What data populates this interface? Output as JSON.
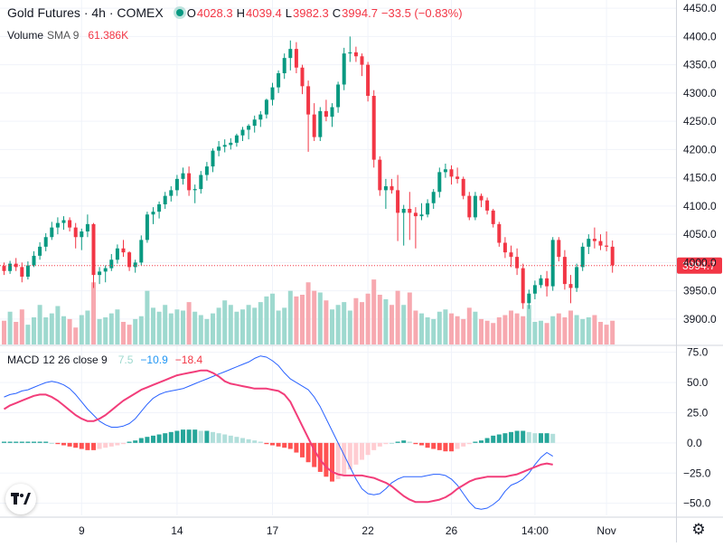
{
  "header": {
    "title": "Gold Futures · 4h · COMEX",
    "o_label": "O",
    "o_value": "4028.3",
    "h_label": "H",
    "h_value": "4039.4",
    "l_label": "L",
    "l_value": "3982.3",
    "c_label": "C",
    "c_value": "3994.7",
    "change": "−33.5 (−0.83%)",
    "volume_label": "Volume",
    "volume_sma": "SMA 9",
    "volume_value": "61.386K",
    "macd_label": "MACD",
    "macd_params": "12 26 close 9",
    "macd_hist": "7.5",
    "macd_line": "−10.9",
    "macd_signal": "−18.4",
    "last_price_label": "3994.7"
  },
  "colors": {
    "up": "#089981",
    "down": "#F23645",
    "up_vol": "#9ED9CF",
    "down_vol": "#F7A9B0",
    "macd_line": "#2962FF",
    "signal_line": "#F23D7A",
    "hist_up_strong": "#26A69A",
    "hist_up_weak": "#B2DFDB",
    "hist_down_strong": "#FF5252",
    "hist_down_weak": "#FFCDD2",
    "macd_label": "#2196F3",
    "hist_label": "#9ED9CF",
    "signal_label": "#F23645"
  },
  "chart_data": [
    {
      "type": "candlestick",
      "title": "Gold Futures · 4h · COMEX",
      "ylim": [
        3855,
        4455
      ],
      "y_ticks": [
        3900,
        3950,
        4000,
        4050,
        4100,
        4150,
        4200,
        4250,
        4300,
        4350,
        4400,
        4450
      ],
      "x_ticks": [
        {
          "label": "9",
          "index": 13
        },
        {
          "label": "14",
          "index": 29
        },
        {
          "label": "17",
          "index": 45
        },
        {
          "label": "22",
          "index": 61
        },
        {
          "label": "26",
          "index": 75
        },
        {
          "label": "14:00",
          "index": 89
        },
        {
          "label": "Nov",
          "index": 101
        }
      ],
      "last_price": 3994.7,
      "ohlc": [
        [
          3994,
          4000,
          3978,
          3985
        ],
        [
          3985,
          4003,
          3980,
          3998
        ],
        [
          3998,
          4008,
          3985,
          3992
        ],
        [
          3992,
          4000,
          3965,
          3975
        ],
        [
          3975,
          4002,
          3970,
          3995
        ],
        [
          3995,
          4020,
          3992,
          4012
        ],
        [
          4012,
          4036,
          4005,
          4028
        ],
        [
          4028,
          4052,
          4020,
          4045
        ],
        [
          4045,
          4072,
          4040,
          4062
        ],
        [
          4062,
          4080,
          4050,
          4070
        ],
        [
          4070,
          4082,
          4058,
          4075
        ],
        [
          4075,
          4080,
          4055,
          4062
        ],
        [
          4062,
          4070,
          4025,
          4045
        ],
        [
          4045,
          4060,
          4022,
          4055
        ],
        [
          4055,
          4085,
          4045,
          4068
        ],
        [
          4068,
          4070,
          3955,
          3978
        ],
        [
          3978,
          3992,
          3962,
          3984
        ],
        [
          3984,
          3995,
          3965,
          3990
        ],
        [
          3990,
          4015,
          3985,
          4005
        ],
        [
          4005,
          4032,
          3998,
          4025
        ],
        [
          4025,
          4040,
          4010,
          4018
        ],
        [
          4018,
          4020,
          3985,
          3992
        ],
        [
          3992,
          4005,
          3982,
          4000
        ],
        [
          4000,
          4048,
          3995,
          4040
        ],
        [
          4040,
          4090,
          4035,
          4085
        ],
        [
          4085,
          4098,
          4068,
          4090
        ],
        [
          4090,
          4108,
          4078,
          4103
        ],
        [
          4103,
          4125,
          4095,
          4118
        ],
        [
          4118,
          4135,
          4108,
          4128
        ],
        [
          4128,
          4155,
          4118,
          4148
        ],
        [
          4148,
          4168,
          4138,
          4158
        ],
        [
          4158,
          4170,
          4118,
          4128
        ],
        [
          4128,
          4138,
          4105,
          4130
        ],
        [
          4130,
          4162,
          4122,
          4155
        ],
        [
          4155,
          4178,
          4145,
          4170
        ],
        [
          4170,
          4202,
          4160,
          4198
        ],
        [
          4198,
          4215,
          4188,
          4205
        ],
        [
          4205,
          4218,
          4195,
          4208
        ],
        [
          4208,
          4220,
          4200,
          4212
        ],
        [
          4212,
          4228,
          4205,
          4225
        ],
        [
          4225,
          4240,
          4215,
          4235
        ],
        [
          4235,
          4245,
          4218,
          4242
        ],
        [
          4242,
          4260,
          4230,
          4253
        ],
        [
          4253,
          4268,
          4240,
          4262
        ],
        [
          4262,
          4290,
          4255,
          4288
        ],
        [
          4288,
          4318,
          4278,
          4310
        ],
        [
          4310,
          4340,
          4300,
          4335
        ],
        [
          4335,
          4370,
          4325,
          4362
        ],
        [
          4362,
          4393,
          4340,
          4378
        ],
        [
          4378,
          4390,
          4335,
          4345
        ],
        [
          4345,
          4350,
          4298,
          4312
        ],
        [
          4312,
          4322,
          4196,
          4262
        ],
        [
          4262,
          4282,
          4215,
          4222
        ],
        [
          4222,
          4275,
          4215,
          4268
        ],
        [
          4268,
          4288,
          4250,
          4258
        ],
        [
          4258,
          4282,
          4240,
          4275
        ],
        [
          4275,
          4320,
          4265,
          4315
        ],
        [
          4315,
          4380,
          4305,
          4370
        ],
        [
          4370,
          4400,
          4355,
          4372
        ],
        [
          4372,
          4382,
          4355,
          4365
        ],
        [
          4365,
          4370,
          4330,
          4350
        ],
        [
          4350,
          4355,
          4285,
          4295
        ],
        [
          4295,
          4305,
          4168,
          4182
        ],
        [
          4182,
          4188,
          4118,
          4128
        ],
        [
          4128,
          4148,
          4095,
          4135
        ],
        [
          4135,
          4148,
          4122,
          4128
        ],
        [
          4128,
          4155,
          4038,
          4088
        ],
        [
          4088,
          4102,
          4030,
          4095
        ],
        [
          4095,
          4125,
          4040,
          4088
        ],
        [
          4088,
          4098,
          4025,
          4082
        ],
        [
          4082,
          4105,
          4075,
          4085
        ],
        [
          4085,
          4112,
          4080,
          4105
        ],
        [
          4105,
          4130,
          4095,
          4125
        ],
        [
          4125,
          4168,
          4115,
          4160
        ],
        [
          4160,
          4175,
          4150,
          4165
        ],
        [
          4165,
          4172,
          4138,
          4152
        ],
        [
          4152,
          4168,
          4140,
          4148
        ],
        [
          4148,
          4152,
          4112,
          4118
        ],
        [
          4118,
          4125,
          4075,
          4080
        ],
        [
          4080,
          4125,
          4075,
          4118
        ],
        [
          4118,
          4122,
          4098,
          4110
        ],
        [
          4110,
          4115,
          4085,
          4092
        ],
        [
          4092,
          4095,
          4062,
          4068
        ],
        [
          4068,
          4072,
          4028,
          4035
        ],
        [
          4035,
          4045,
          4008,
          4018
        ],
        [
          4018,
          4030,
          3992,
          4010
        ],
        [
          4010,
          4025,
          3978,
          3990
        ],
        [
          3990,
          3998,
          3918,
          3928
        ],
        [
          3928,
          3952,
          3918,
          3945
        ],
        [
          3945,
          3968,
          3935,
          3960
        ],
        [
          3960,
          3978,
          3955,
          3972
        ],
        [
          3972,
          3985,
          3940,
          3958
        ],
        [
          3958,
          4045,
          3950,
          4040
        ],
        [
          4040,
          4045,
          4002,
          4010
        ],
        [
          4010,
          4022,
          3952,
          3962
        ],
        [
          3962,
          3978,
          3928,
          3955
        ],
        [
          3955,
          3998,
          3948,
          3992
        ],
        [
          3992,
          4035,
          3985,
          4028
        ],
        [
          4028,
          4050,
          4015,
          4042
        ],
        [
          4042,
          4062,
          4025,
          4038
        ],
        [
          4038,
          4050,
          4022,
          4030
        ],
        [
          4030,
          4055,
          4020,
          4028
        ],
        [
          4028,
          4039,
          3982,
          3995
        ]
      ]
    },
    {
      "type": "bar",
      "title": "Volume",
      "subtitle": "SMA 9",
      "last_value": "61.386K",
      "ylim": [
        0,
        160000
      ],
      "values": [
        42000,
        58000,
        40000,
        62000,
        35000,
        48000,
        70000,
        48000,
        55000,
        68000,
        50000,
        45000,
        30000,
        52000,
        60000,
        110000,
        45000,
        48000,
        55000,
        62000,
        40000,
        35000,
        45000,
        50000,
        95000,
        65000,
        58000,
        70000,
        55000,
        62000,
        60000,
        75000,
        58000,
        52000,
        45000,
        55000,
        65000,
        78000,
        70000,
        58000,
        62000,
        70000,
        65000,
        75000,
        85000,
        90000,
        60000,
        65000,
        95000,
        85000,
        88000,
        110000,
        95000,
        92000,
        78000,
        62000,
        70000,
        75000,
        60000,
        82000,
        75000,
        90000,
        115000,
        88000,
        80000,
        70000,
        95000,
        70000,
        92000,
        60000,
        55000,
        48000,
        45000,
        58000,
        62000,
        55000,
        50000,
        45000,
        65000,
        58000,
        45000,
        42000,
        38000,
        48000,
        52000,
        60000,
        55000,
        50000,
        70000,
        40000,
        42000,
        38000,
        50000,
        55000,
        48000,
        60000,
        52000,
        45000,
        48000,
        52000,
        40000,
        35000,
        42000
      ]
    },
    {
      "type": "line",
      "title": "MACD",
      "subtitle": "12 26 close 9",
      "ylim": [
        -60,
        80
      ],
      "y_ticks": [
        -50.0,
        -25.0,
        0.0,
        25.0,
        50.0,
        75.0
      ],
      "series": [
        {
          "name": "MACD",
          "values": [
            38,
            40,
            41,
            43,
            44,
            46,
            48,
            50,
            51,
            50,
            48,
            45,
            40,
            34,
            28,
            23,
            18,
            15,
            13,
            13,
            14,
            16,
            20,
            26,
            32,
            37,
            40,
            42,
            43,
            44,
            45,
            47,
            49,
            51,
            53,
            55,
            57,
            59,
            61,
            63,
            65,
            67,
            70,
            72,
            71,
            68,
            64,
            58,
            53,
            50,
            47,
            44,
            38,
            30,
            20,
            10,
            0,
            -10,
            -20,
            -30,
            -38,
            -42,
            -43,
            -42,
            -38,
            -33,
            -30,
            -28,
            -28,
            -28,
            -28,
            -27,
            -26,
            -26,
            -27,
            -30,
            -35,
            -42,
            -49,
            -54,
            -55,
            -54,
            -51,
            -47,
            -40,
            -35,
            -33,
            -30,
            -25,
            -18,
            -12,
            -8,
            -11
          ]
        },
        {
          "name": "Signal",
          "values": [
            28,
            31,
            33,
            35,
            37,
            39,
            40,
            40,
            38,
            35,
            31,
            27,
            23,
            20,
            18,
            18,
            20,
            23,
            27,
            31,
            35,
            38,
            41,
            44,
            46,
            48,
            50,
            52,
            54,
            56,
            57,
            58,
            59,
            60,
            60,
            58,
            55,
            51,
            49,
            48,
            47,
            46,
            45,
            45,
            45,
            44,
            43,
            40,
            34,
            24,
            14,
            4,
            -6,
            -14,
            -20,
            -24,
            -26,
            -27,
            -27,
            -27,
            -27,
            -28,
            -29,
            -31,
            -33,
            -36,
            -40,
            -44,
            -47,
            -49,
            -49,
            -49,
            -48,
            -47,
            -45,
            -42,
            -38,
            -35,
            -32,
            -30,
            -29,
            -28,
            -28,
            -28,
            -28,
            -27,
            -26,
            -24,
            -22,
            -20,
            -18,
            -17,
            -18
          ]
        }
      ],
      "histogram": [
        1,
        1,
        1,
        1,
        1,
        1,
        1,
        1,
        0,
        -1,
        -2,
        -3,
        -4,
        -5,
        -6,
        -6,
        -5,
        -4,
        -3,
        -2,
        -1,
        1,
        2,
        4,
        5,
        6,
        7,
        8,
        9,
        10,
        11,
        11,
        11,
        10,
        10,
        9,
        8,
        7,
        6,
        5,
        4,
        3,
        2,
        1,
        -1,
        -2,
        -3,
        -4,
        -5,
        -8,
        -12,
        -16,
        -20,
        -24,
        -28,
        -32,
        -30,
        -26,
        -22,
        -18,
        -14,
        -10,
        -6,
        -3,
        -1,
        0,
        1,
        2,
        1,
        -1,
        -2,
        -4,
        -5,
        -6,
        -7,
        -7,
        -5,
        -3,
        -1,
        1,
        2,
        4,
        6,
        7,
        8,
        9,
        10,
        10,
        9,
        8,
        8,
        8,
        7.5
      ]
    }
  ]
}
